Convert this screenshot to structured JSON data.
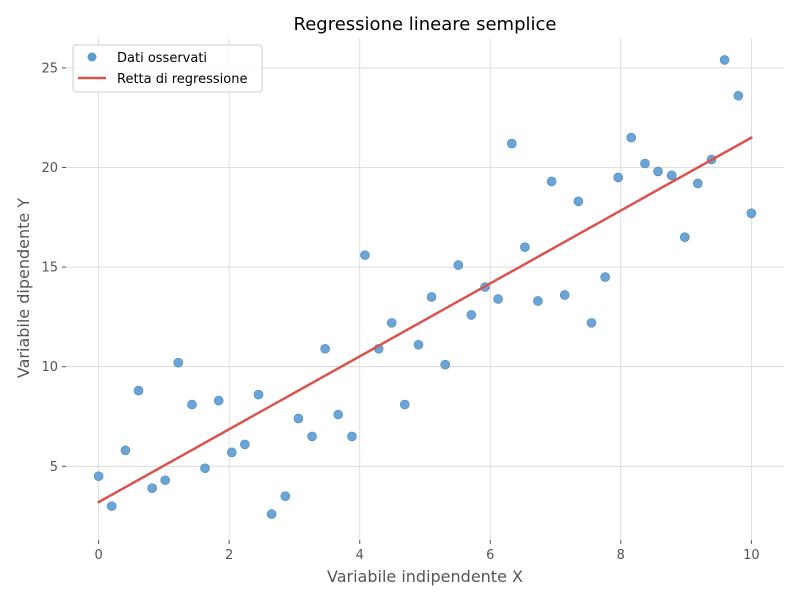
{
  "chart_data": {
    "type": "scatter",
    "title": "Regressione lineare semplice",
    "xlabel": "Variabile indipendente X",
    "ylabel": "Variabile dipendente Y",
    "xlim": [
      -0.5,
      10.5
    ],
    "ylim": [
      1.3,
      26.5
    ],
    "xticks": [
      0,
      2,
      4,
      6,
      8,
      10
    ],
    "yticks": [
      5,
      10,
      15,
      20,
      25
    ],
    "grid": true,
    "legend": "top-left",
    "colors": {
      "points": "#5b9bd1",
      "line": "#d9534f"
    },
    "series": [
      {
        "name": "Dati osservati",
        "kind": "scatter",
        "x": [
          0,
          0.2,
          0.41,
          0.61,
          0.82,
          1.02,
          1.22,
          1.43,
          1.63,
          1.84,
          2.04,
          2.24,
          2.45,
          2.65,
          2.86,
          3.06,
          3.27,
          3.47,
          3.67,
          3.88,
          4.08,
          4.29,
          4.49,
          4.69,
          4.9,
          5.1,
          5.31,
          5.51,
          5.71,
          5.92,
          6.12,
          6.33,
          6.53,
          6.73,
          6.94,
          7.14,
          7.35,
          7.55,
          7.76,
          7.96,
          8.16,
          8.37,
          8.57,
          8.78,
          8.98,
          9.18,
          9.39,
          9.59,
          9.8,
          10.0
        ],
        "y": [
          4.5,
          3.0,
          5.8,
          8.8,
          3.9,
          4.3,
          10.2,
          8.1,
          4.9,
          8.3,
          5.7,
          6.1,
          8.6,
          2.6,
          3.5,
          7.4,
          6.5,
          10.9,
          7.6,
          6.5,
          15.6,
          10.9,
          12.2,
          8.1,
          11.1,
          13.5,
          10.1,
          15.1,
          12.6,
          14.0,
          13.4,
          21.2,
          16.0,
          13.3,
          19.3,
          13.6,
          18.3,
          12.2,
          14.5,
          19.5,
          21.5,
          20.2,
          19.8,
          19.6,
          16.5,
          19.2,
          20.4,
          25.4,
          23.6,
          17.7
        ]
      },
      {
        "name": "Retta di regressione",
        "kind": "line",
        "x": [
          0,
          10
        ],
        "y": [
          3.2,
          21.5
        ]
      }
    ]
  }
}
